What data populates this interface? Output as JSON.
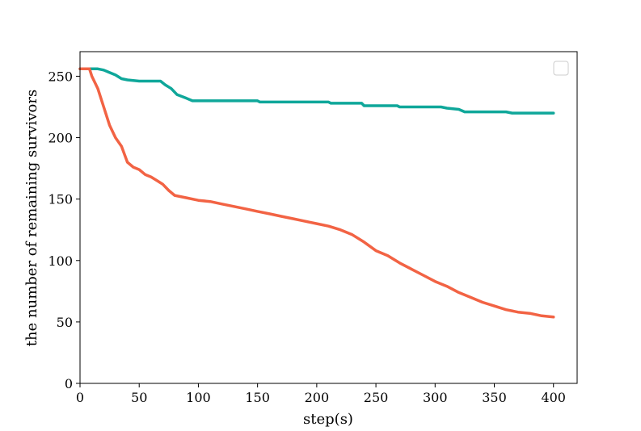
{
  "chart_data": {
    "type": "line",
    "title": "",
    "xlabel": "step(s)",
    "ylabel": "the number of remaining survivors",
    "xlim": [
      0,
      420
    ],
    "ylim": [
      0,
      270
    ],
    "x_ticks": [
      0,
      50,
      100,
      150,
      200,
      250,
      300,
      350,
      400
    ],
    "y_ticks": [
      0,
      50,
      100,
      150,
      200,
      250
    ],
    "grid": false,
    "legend": {
      "placement": "top-right",
      "entries": []
    },
    "series": [
      {
        "color": "#0fa79a",
        "x": [
          0,
          15,
          20,
          25,
          30,
          35,
          40,
          50,
          60,
          68,
          72,
          77,
          82,
          90,
          95,
          150,
          152,
          210,
          212,
          238,
          240,
          268,
          270,
          305,
          310,
          320,
          325,
          360,
          365,
          400
        ],
        "y": [
          256,
          256,
          255,
          253,
          251,
          248,
          247,
          246,
          246,
          246,
          243,
          240,
          235,
          232,
          230,
          230,
          229,
          229,
          228,
          228,
          226,
          226,
          225,
          225,
          224,
          223,
          221,
          221,
          220,
          220
        ]
      },
      {
        "color": "#f26344",
        "x": [
          0,
          8,
          10,
          15,
          20,
          25,
          30,
          35,
          40,
          45,
          50,
          55,
          60,
          65,
          70,
          75,
          80,
          90,
          100,
          110,
          120,
          130,
          140,
          150,
          160,
          170,
          180,
          190,
          200,
          210,
          220,
          230,
          240,
          250,
          260,
          270,
          280,
          290,
          300,
          310,
          320,
          330,
          340,
          350,
          360,
          370,
          380,
          390,
          400
        ],
        "y": [
          256,
          256,
          250,
          240,
          225,
          210,
          200,
          193,
          180,
          176,
          174,
          170,
          168,
          165,
          162,
          157,
          153,
          151,
          149,
          148,
          146,
          144,
          142,
          140,
          138,
          136,
          134,
          132,
          130,
          128,
          125,
          121,
          115,
          108,
          104,
          98,
          93,
          88,
          83,
          79,
          74,
          70,
          66,
          63,
          60,
          58,
          57,
          55,
          54
        ]
      }
    ]
  }
}
